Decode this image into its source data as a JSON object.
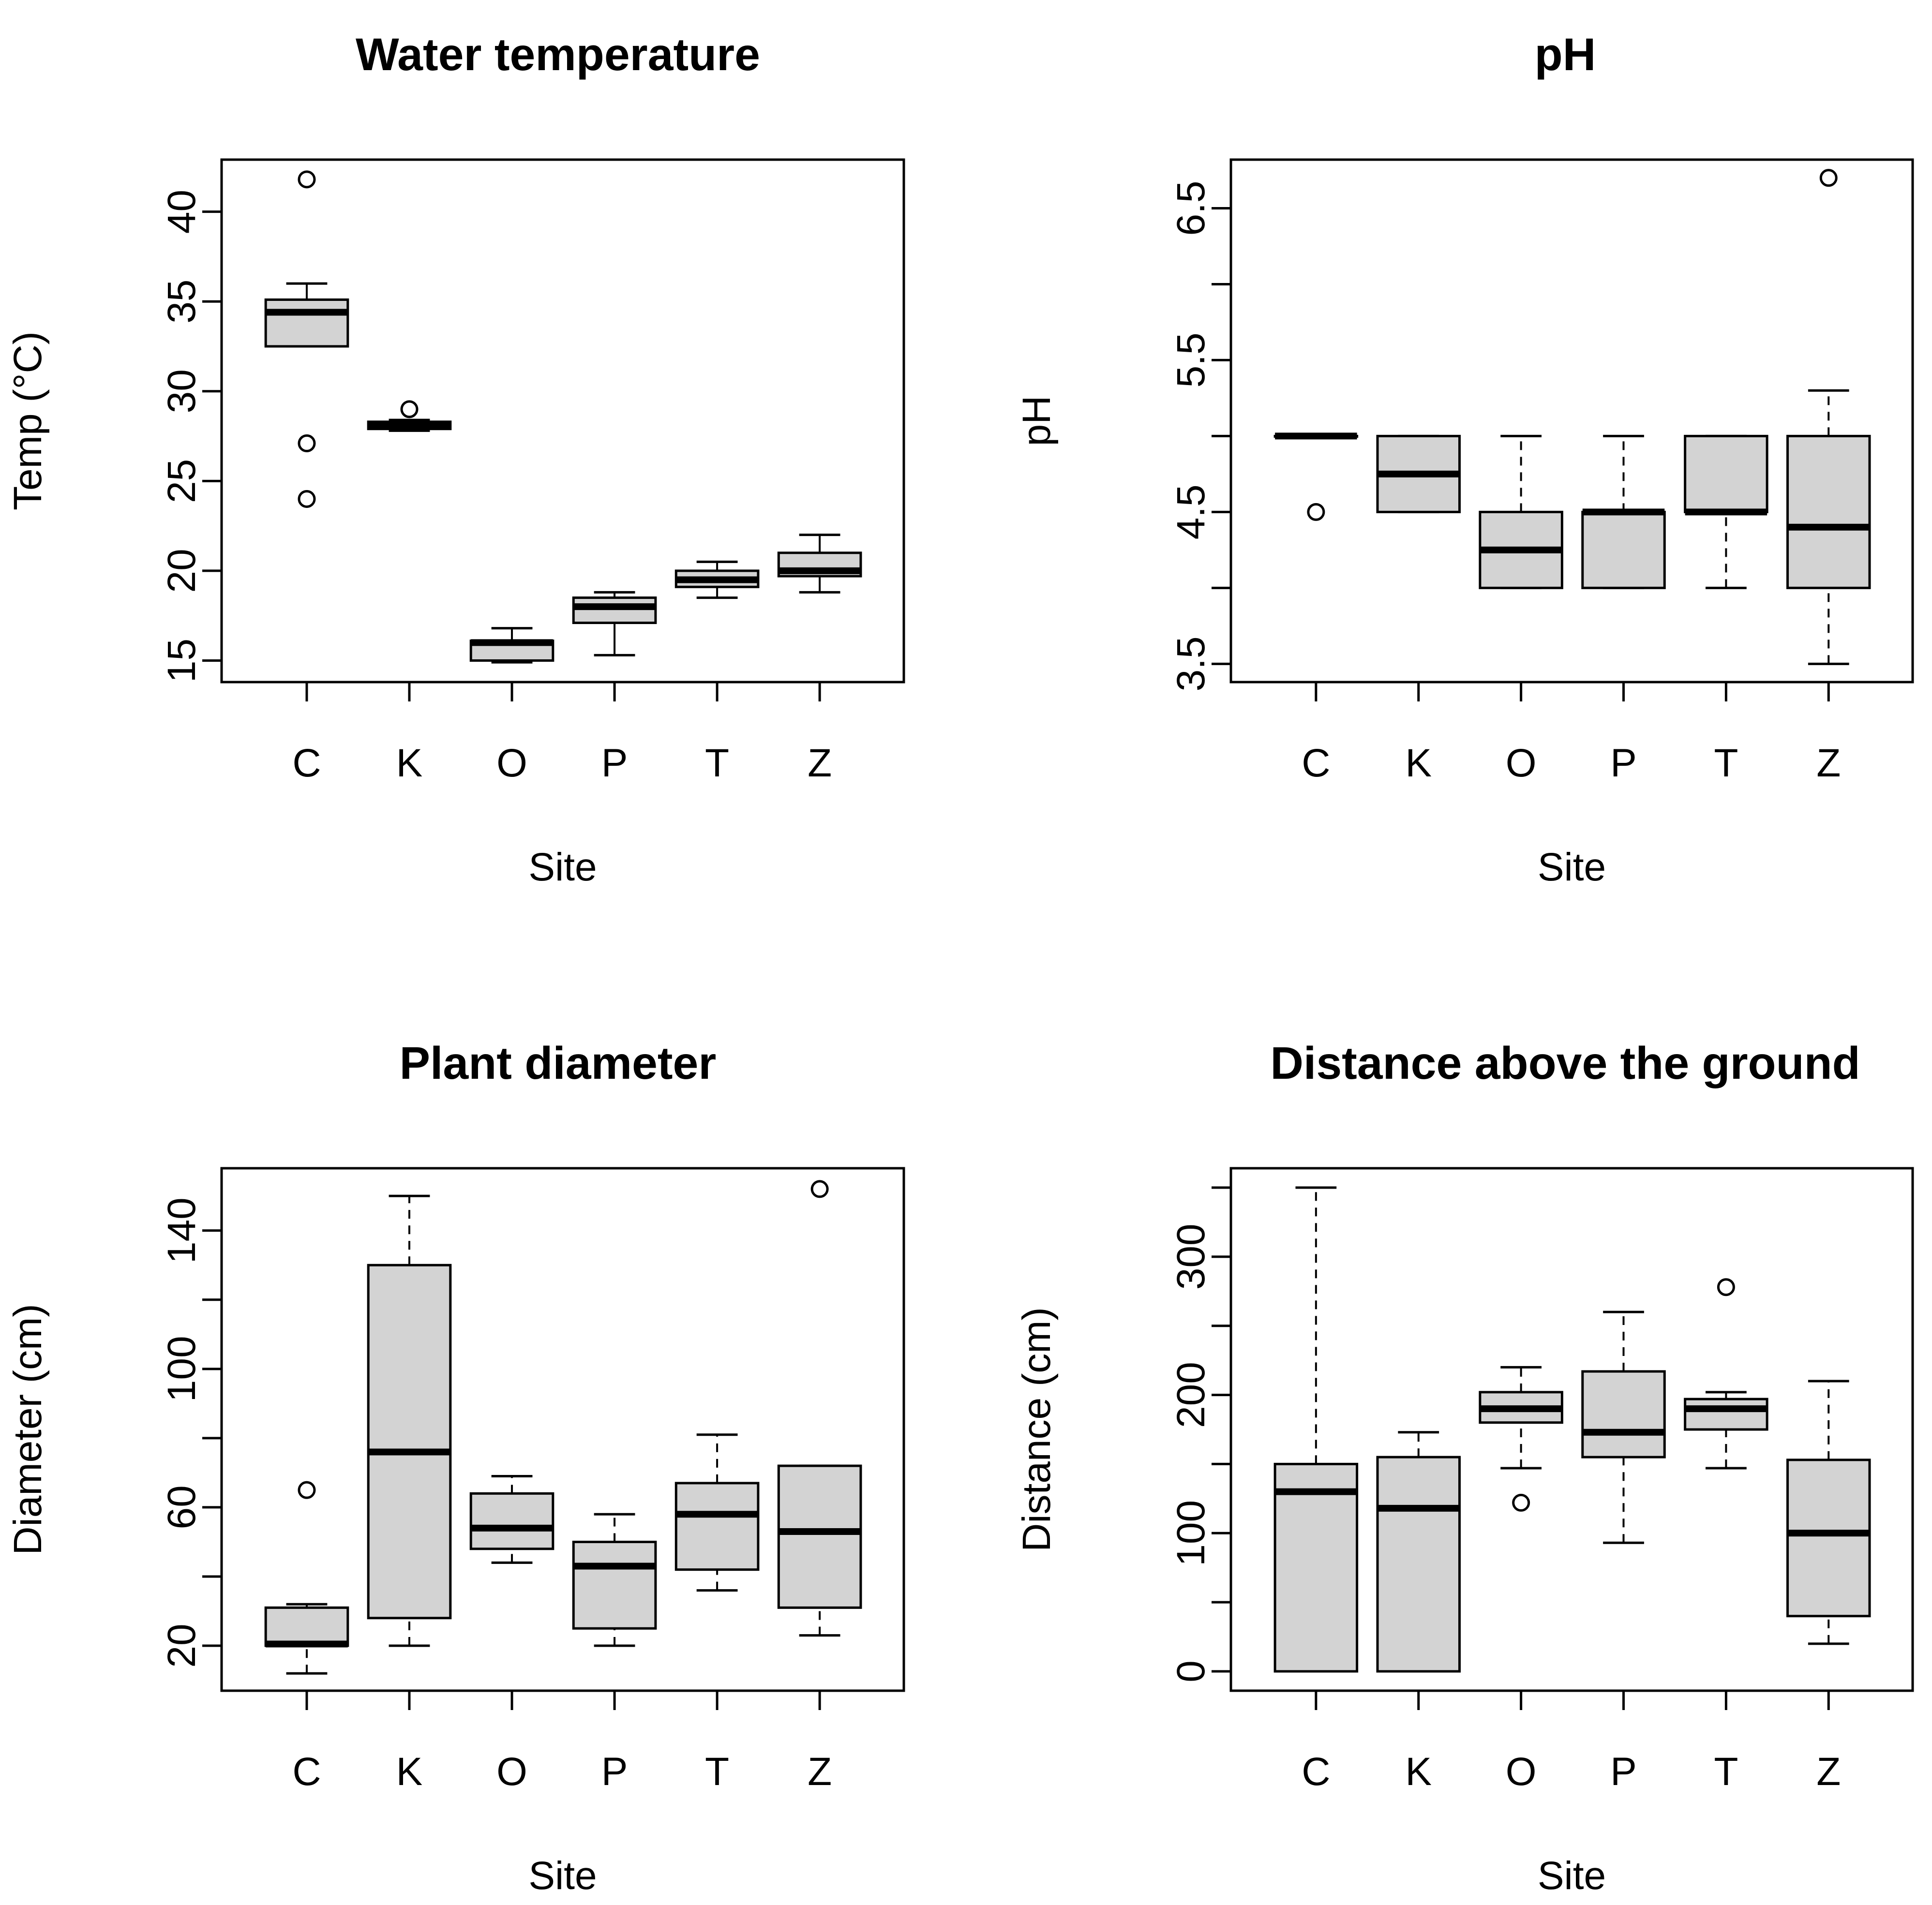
{
  "chart_data": [
    {
      "type": "boxplot",
      "title": "Water temperature",
      "xlabel": "Site",
      "ylabel": "Temp (°C)",
      "categories": [
        "C",
        "K",
        "O",
        "P",
        "T",
        "Z"
      ],
      "ylim": [
        13.8,
        42.9
      ],
      "yticks": [
        15,
        20,
        25,
        30,
        35,
        40
      ],
      "ytick_labels": [
        "15",
        "20",
        "25",
        "30",
        "35",
        "40"
      ],
      "boxes": [
        {
          "whisker_low": 32.5,
          "q1": 32.5,
          "median": 34.4,
          "q3": 35.1,
          "whisker_high": 36.0,
          "outliers": [
            41.8,
            27.1,
            24.0
          ],
          "dashed": false
        },
        {
          "whisker_low": 27.8,
          "q1": 27.9,
          "median": 28.1,
          "q3": 28.3,
          "whisker_high": 28.4,
          "outliers": [
            29.0
          ],
          "dashed": false
        },
        {
          "whisker_low": 14.9,
          "q1": 15.0,
          "median": 16.0,
          "q3": 16.1,
          "whisker_high": 16.8,
          "outliers": [],
          "dashed": false
        },
        {
          "whisker_low": 15.3,
          "q1": 17.1,
          "median": 18.0,
          "q3": 18.5,
          "whisker_high": 18.8,
          "outliers": [],
          "dashed": false
        },
        {
          "whisker_low": 18.5,
          "q1": 19.1,
          "median": 19.5,
          "q3": 20.0,
          "whisker_high": 20.5,
          "outliers": [],
          "dashed": false
        },
        {
          "whisker_low": 18.8,
          "q1": 19.7,
          "median": 20.0,
          "q3": 21.0,
          "whisker_high": 22.0,
          "outliers": [],
          "dashed": false
        }
      ]
    },
    {
      "type": "boxplot",
      "title": "pH",
      "xlabel": "Site",
      "ylabel": "pH",
      "categories": [
        "C",
        "K",
        "O",
        "P",
        "T",
        "Z"
      ],
      "ylim": [
        3.38,
        6.82
      ],
      "yticks": [
        3.5,
        4.0,
        4.5,
        5.0,
        5.5,
        6.0,
        6.5
      ],
      "ytick_labels": [
        "3.5",
        "",
        "4.5",
        "",
        "5.5",
        "",
        "6.5"
      ],
      "boxes": [
        {
          "whisker_low": 5.0,
          "q1": 5.0,
          "median": 5.0,
          "q3": 5.0,
          "whisker_high": 5.0,
          "outliers": [
            4.5
          ],
          "dashed": true
        },
        {
          "whisker_low": 4.5,
          "q1": 4.5,
          "median": 4.75,
          "q3": 5.0,
          "whisker_high": 5.0,
          "outliers": [],
          "dashed": true
        },
        {
          "whisker_low": 4.0,
          "q1": 4.0,
          "median": 4.25,
          "q3": 4.5,
          "whisker_high": 5.0,
          "outliers": [],
          "dashed": true
        },
        {
          "whisker_low": 4.0,
          "q1": 4.0,
          "median": 4.5,
          "q3": 4.5,
          "whisker_high": 5.0,
          "outliers": [],
          "dashed": true
        },
        {
          "whisker_low": 4.0,
          "q1": 4.5,
          "median": 4.5,
          "q3": 5.0,
          "whisker_high": 5.0,
          "outliers": [],
          "dashed": true
        },
        {
          "whisker_low": 3.5,
          "q1": 4.0,
          "median": 4.4,
          "q3": 5.0,
          "whisker_high": 5.3,
          "outliers": [
            6.7
          ],
          "dashed": true
        }
      ]
    },
    {
      "type": "boxplot",
      "title": "Plant diameter",
      "xlabel": "Site",
      "ylabel": "Diameter (cm)",
      "categories": [
        "C",
        "K",
        "O",
        "P",
        "T",
        "Z"
      ],
      "ylim": [
        7,
        158
      ],
      "yticks": [
        20,
        40,
        60,
        80,
        100,
        120,
        140
      ],
      "ytick_labels": [
        "20",
        "",
        "60",
        "",
        "100",
        "",
        "140"
      ],
      "boxes": [
        {
          "whisker_low": 12,
          "q1": 20,
          "median": 20.5,
          "q3": 31,
          "whisker_high": 32,
          "outliers": [
            65
          ],
          "dashed": true
        },
        {
          "whisker_low": 20,
          "q1": 28,
          "median": 76,
          "q3": 130,
          "whisker_high": 150,
          "outliers": [],
          "dashed": true
        },
        {
          "whisker_low": 44,
          "q1": 48,
          "median": 54,
          "q3": 64,
          "whisker_high": 69,
          "outliers": [],
          "dashed": true
        },
        {
          "whisker_low": 20,
          "q1": 25,
          "median": 43,
          "q3": 50,
          "whisker_high": 58,
          "outliers": [],
          "dashed": true
        },
        {
          "whisker_low": 36,
          "q1": 42,
          "median": 58,
          "q3": 67,
          "whisker_high": 81,
          "outliers": [],
          "dashed": true
        },
        {
          "whisker_low": 23,
          "q1": 31,
          "median": 53,
          "q3": 72,
          "whisker_high": 72,
          "outliers": [
            152
          ],
          "dashed": true
        }
      ]
    },
    {
      "type": "boxplot",
      "title": "Distance above the ground",
      "xlabel": "Site",
      "ylabel": "Distance (cm)",
      "categories": [
        "C",
        "K",
        "O",
        "P",
        "T",
        "Z"
      ],
      "ylim": [
        -14,
        364
      ],
      "yticks": [
        0,
        50,
        100,
        150,
        200,
        250,
        300,
        350
      ],
      "ytick_labels": [
        "0",
        "",
        "100",
        "",
        "200",
        "",
        "300",
        ""
      ],
      "boxes": [
        {
          "whisker_low": 0,
          "q1": 0,
          "median": 130,
          "q3": 150,
          "whisker_high": 350,
          "outliers": [],
          "dashed": true
        },
        {
          "whisker_low": 0,
          "q1": 0,
          "median": 118,
          "q3": 155,
          "whisker_high": 173,
          "outliers": [],
          "dashed": true
        },
        {
          "whisker_low": 147,
          "q1": 180,
          "median": 190,
          "q3": 202,
          "whisker_high": 220,
          "outliers": [
            122
          ],
          "dashed": true
        },
        {
          "whisker_low": 93,
          "q1": 155,
          "median": 173,
          "q3": 217,
          "whisker_high": 260,
          "outliers": [],
          "dashed": true
        },
        {
          "whisker_low": 147,
          "q1": 175,
          "median": 190,
          "q3": 197,
          "whisker_high": 202,
          "outliers": [
            278
          ],
          "dashed": true
        },
        {
          "whisker_low": 20,
          "q1": 40,
          "median": 100,
          "q3": 153,
          "whisker_high": 210,
          "outliers": [],
          "dashed": true
        }
      ]
    }
  ]
}
